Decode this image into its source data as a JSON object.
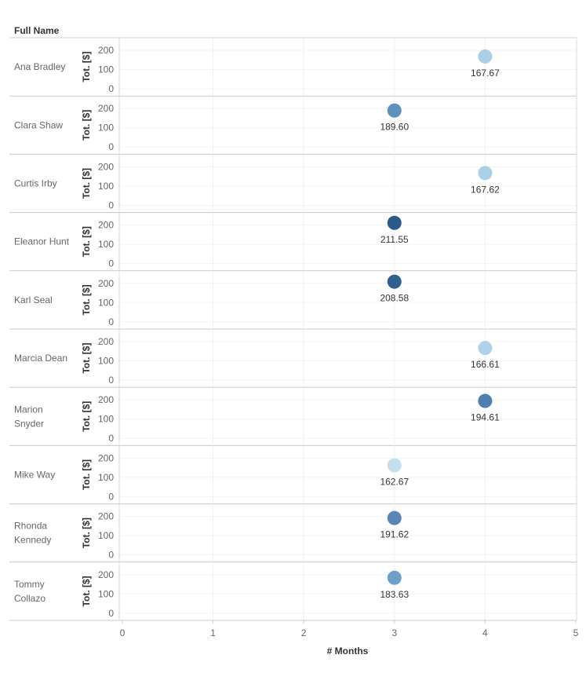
{
  "chart_data": {
    "type": "scatter",
    "row_header": "Full Name",
    "xlabel": "# Months",
    "ylabel": "Tot. [$]",
    "xlim": [
      0,
      5
    ],
    "xticks": [
      "0",
      "1",
      "2",
      "3",
      "4",
      "5"
    ],
    "ylim": [
      0,
      200
    ],
    "yticks": [
      "0",
      "100",
      "200"
    ],
    "grid": true,
    "rows": [
      {
        "name": "Ana Bradley",
        "x": 4,
        "y": 167.67,
        "label": "167.67",
        "color": "#a9cfe9"
      },
      {
        "name": "Clara Shaw",
        "x": 3,
        "y": 189.6,
        "label": "189.60",
        "color": "#5f91bf"
      },
      {
        "name": "Curtis Irby",
        "x": 4,
        "y": 167.62,
        "label": "167.62",
        "color": "#a9cfe9"
      },
      {
        "name": "Eleanor Hunt",
        "x": 3,
        "y": 211.55,
        "label": "211.55",
        "color": "#2b5a8a"
      },
      {
        "name": "Karl Seal",
        "x": 3,
        "y": 208.58,
        "label": "208.58",
        "color": "#30608f"
      },
      {
        "name": "Marcia Dean",
        "x": 4,
        "y": 166.61,
        "label": "166.61",
        "color": "#aed2ea"
      },
      {
        "name": "Marion Snyder",
        "x": 4,
        "y": 194.61,
        "label": "194.61",
        "color": "#4f7fae"
      },
      {
        "name": "Mike Way",
        "x": 3,
        "y": 162.67,
        "label": "162.67",
        "color": "#c2dff0"
      },
      {
        "name": "Rhonda Kennedy",
        "x": 3,
        "y": 191.62,
        "label": "191.62",
        "color": "#5986b7"
      },
      {
        "name": "Tommy Collazo",
        "x": 3,
        "y": 183.63,
        "label": "183.63",
        "color": "#6e9fc9"
      }
    ]
  }
}
